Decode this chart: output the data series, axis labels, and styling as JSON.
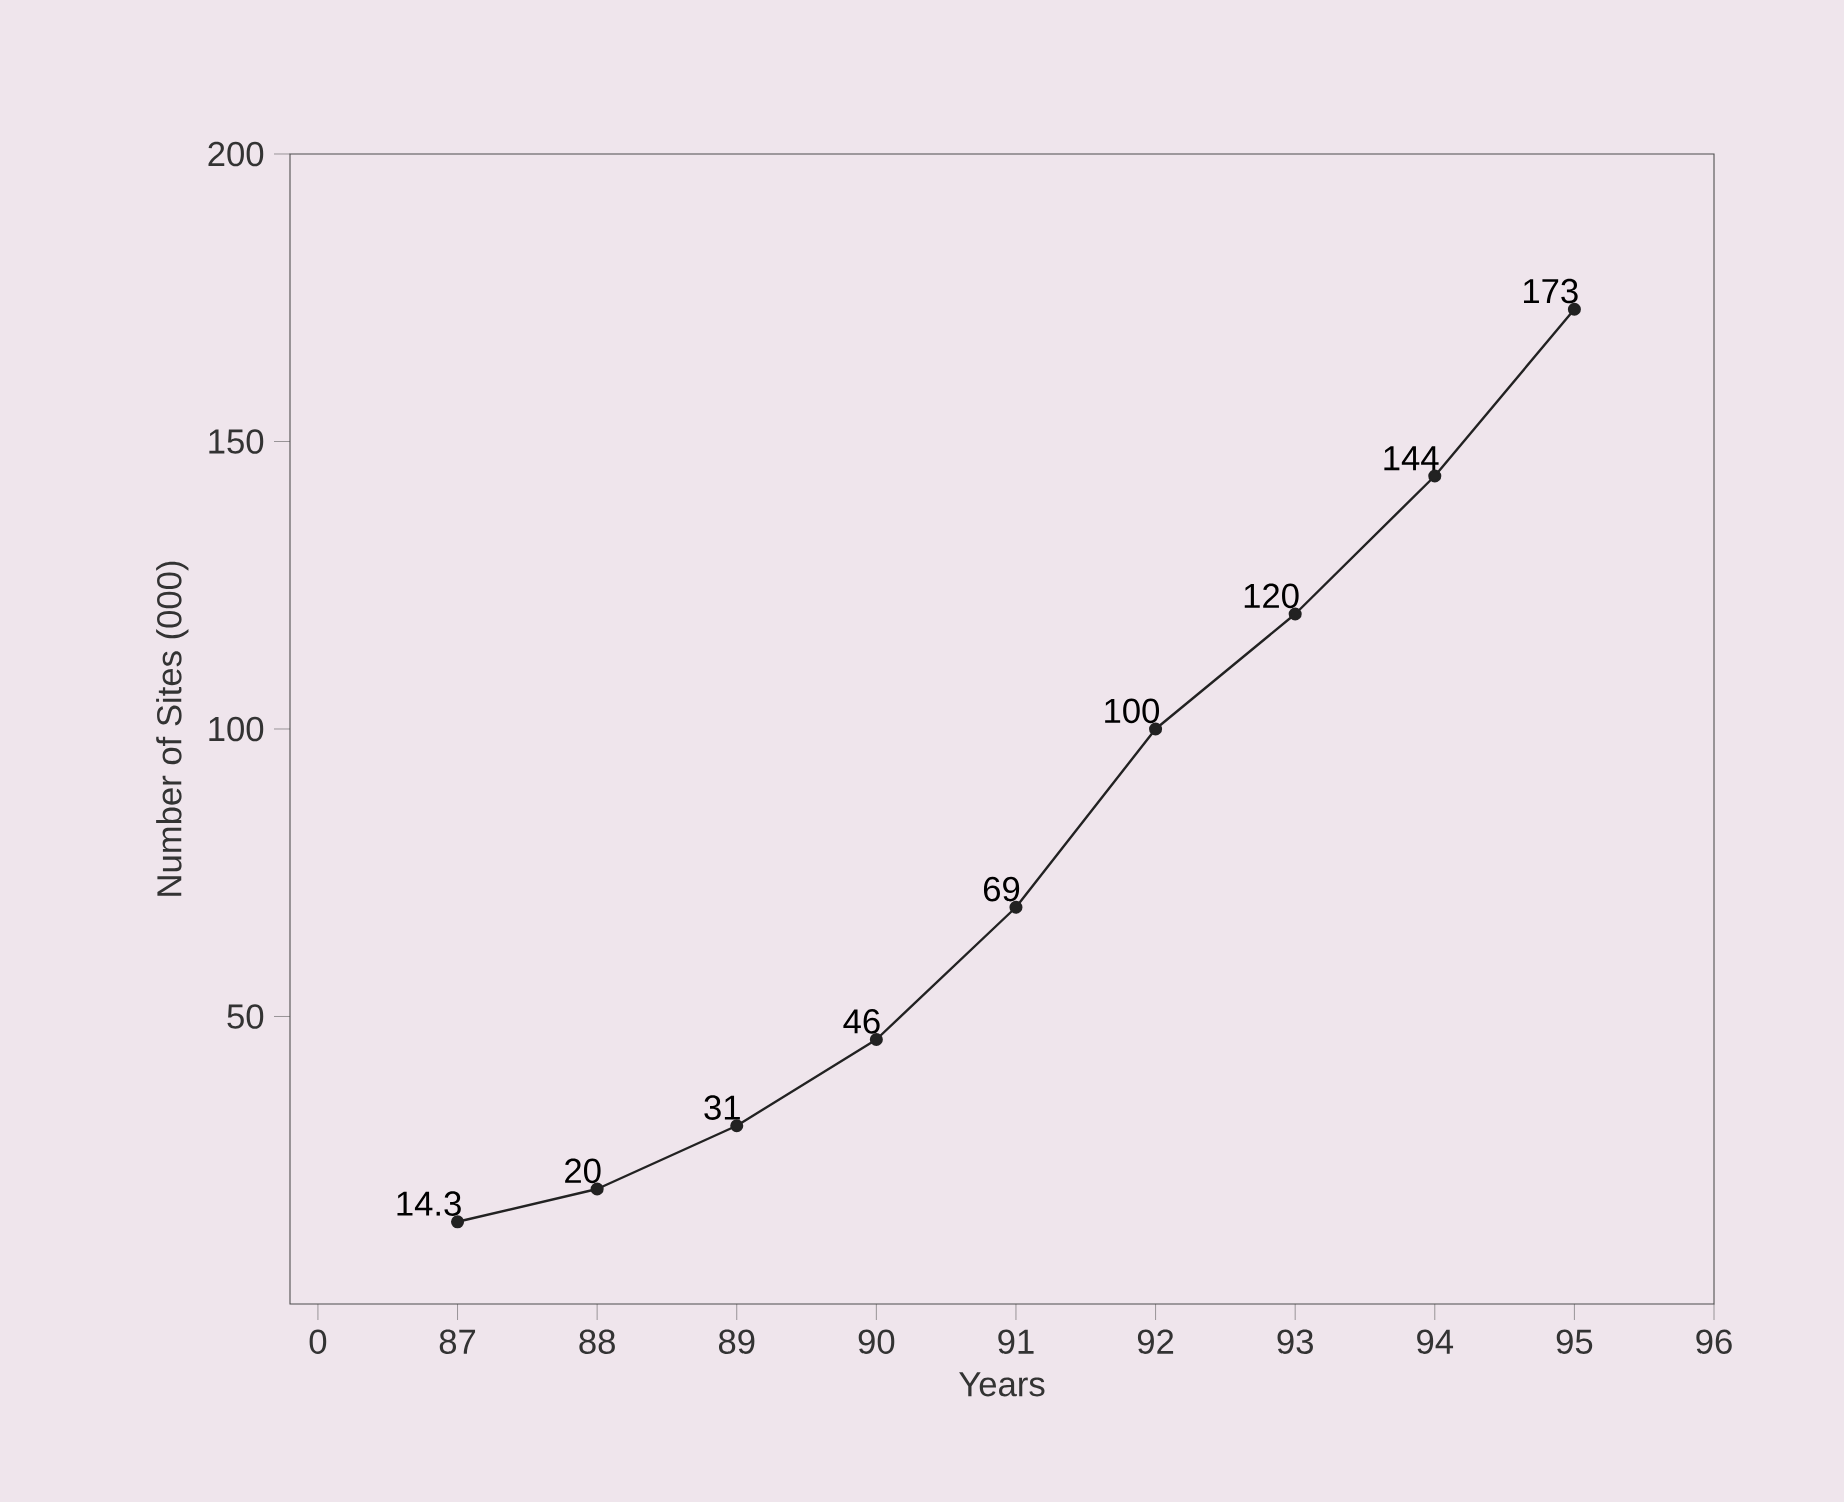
{
  "chart_data": {
    "type": "line",
    "xlabel": "Years",
    "ylabel": "Number of Sites (000)",
    "categories": [
      "0",
      "87",
      "88",
      "89",
      "90",
      "91",
      "92",
      "93",
      "94",
      "95",
      "96"
    ],
    "values": [
      null,
      14.3,
      20,
      31,
      46,
      69,
      100,
      120,
      144,
      173,
      null
    ],
    "color": "#222222",
    "marker": "circle",
    "line_style": "solid",
    "data_labels": true,
    "ylim": [
      0,
      200
    ],
    "yticks": [
      50,
      100,
      150,
      200
    ],
    "grid": false,
    "legend": false
  }
}
